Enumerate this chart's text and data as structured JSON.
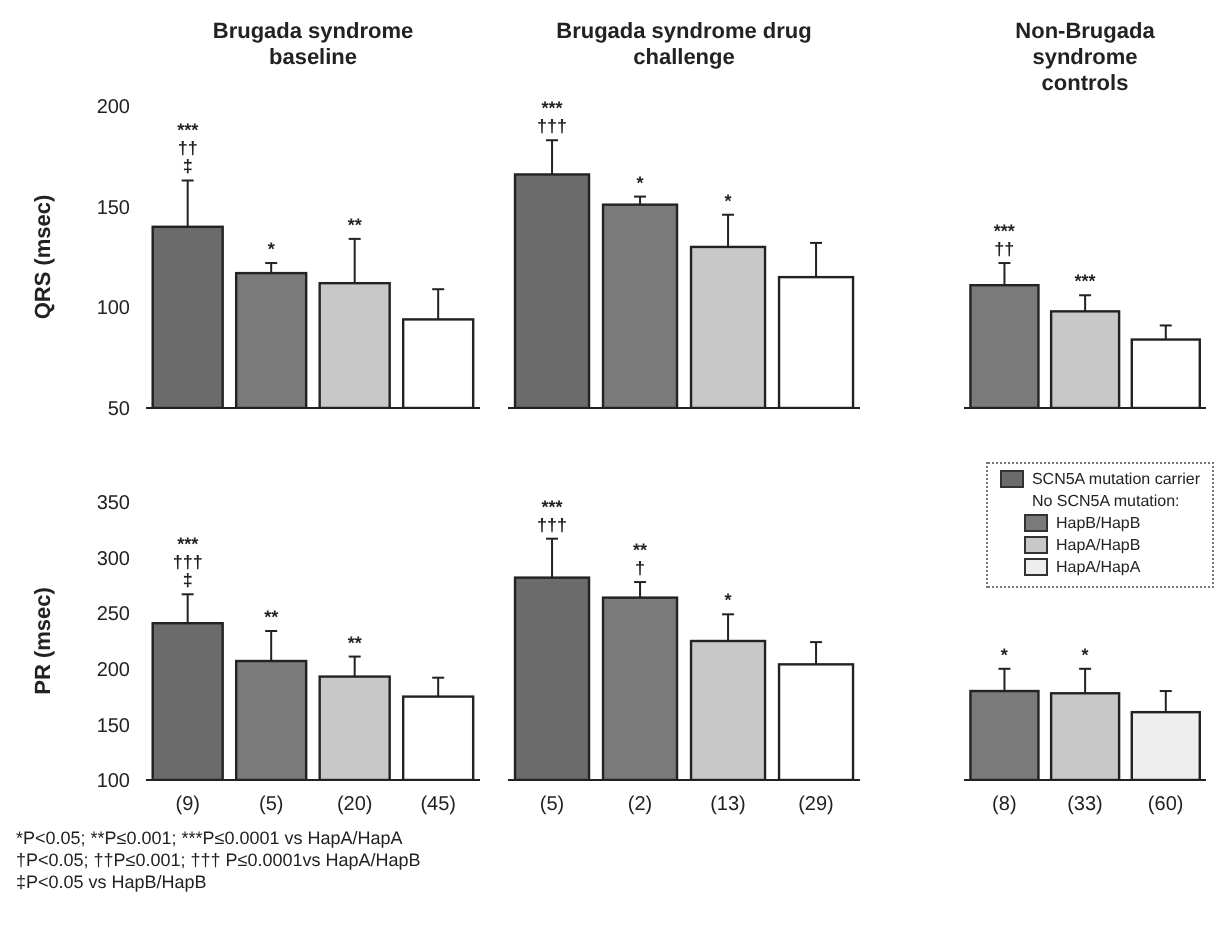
{
  "chart_data": [
    {
      "type": "bar",
      "title": "Brugada syndrome baseline",
      "ylabel": "QRS (msec)",
      "categories": [
        "(9)",
        "(5)",
        "(20)",
        "(45)"
      ],
      "stacked": true,
      "ylim": [
        50,
        200
      ],
      "yticks": [
        50,
        100,
        150,
        200
      ],
      "tick_labels": "y",
      "series": [
        {
          "color": "#6b6b6b",
          "values": [
            140,
            null,
            null,
            null
          ],
          "errors": [
            23,
            null,
            null,
            null
          ]
        },
        {
          "color": "#7a7a7a",
          "values": [
            null,
            117,
            null,
            null
          ],
          "errors": [
            null,
            5,
            null,
            null
          ]
        },
        {
          "color": "#c8c8c8",
          "values": [
            null,
            null,
            112,
            null
          ],
          "errors": [
            null,
            null,
            22,
            null
          ]
        },
        {
          "color": "#ffffff",
          "values": [
            null,
            null,
            null,
            94
          ],
          "errors": [
            null,
            null,
            null,
            15
          ]
        }
      ],
      "annotations": [
        {
          "text": "***",
          "x": "(9)",
          "y": 163
        },
        {
          "text": "††",
          "x": "(9)",
          "y": 163
        },
        {
          "text": "‡",
          "x": "(9)",
          "y": 163
        },
        {
          "text": "*",
          "x": "(5)",
          "y": 122
        },
        {
          "text": "**",
          "x": "(20)",
          "y": 134
        }
      ]
    },
    {
      "type": "bar",
      "title": "Brugada syndrome drug challenge",
      "categories": [
        "(5)",
        "(2)",
        "(13)",
        "(29)"
      ],
      "stacked": true,
      "ylim": [
        50,
        200
      ],
      "yticks": [
        50,
        100,
        150,
        200
      ],
      "tick_labels": false,
      "series": [
        {
          "color": "#6b6b6b",
          "values": [
            166,
            null,
            null,
            null
          ],
          "errors": [
            17,
            null,
            null,
            null
          ]
        },
        {
          "color": "#7a7a7a",
          "values": [
            null,
            151,
            null,
            null
          ],
          "errors": [
            null,
            4,
            null,
            null
          ]
        },
        {
          "color": "#c8c8c8",
          "values": [
            null,
            null,
            130,
            null
          ],
          "errors": [
            null,
            null,
            16,
            null
          ]
        },
        {
          "color": "#ffffff",
          "values": [
            null,
            null,
            null,
            115
          ],
          "errors": [
            null,
            null,
            null,
            17
          ]
        }
      ],
      "annotations": [
        {
          "text": "***",
          "x": "(5)",
          "y": 183
        },
        {
          "text": "†††",
          "x": "(5)",
          "y": 183
        },
        {
          "text": "*",
          "x": "(2)",
          "y": 155
        },
        {
          "text": "*",
          "x": "(13)",
          "y": 146
        }
      ]
    },
    {
      "type": "bar",
      "title": "Non-Brugada syndrome controls",
      "categories": [
        "(8)",
        "(33)",
        "(60)"
      ],
      "stacked": true,
      "ylim": [
        50,
        200
      ],
      "yticks": [
        50,
        100,
        150,
        200
      ],
      "tick_labels": false,
      "series": [
        {
          "color": "#6b6b6b",
          "values": [
            null,
            null,
            null
          ],
          "errors": [
            null,
            null,
            null
          ]
        },
        {
          "color": "#7a7a7a",
          "values": [
            111,
            null,
            null
          ],
          "errors": [
            11,
            null,
            null
          ]
        },
        {
          "color": "#c8c8c8",
          "values": [
            null,
            98,
            null
          ],
          "errors": [
            null,
            8,
            null
          ]
        },
        {
          "color": "#ffffff",
          "values": [
            null,
            null,
            84
          ],
          "errors": [
            null,
            null,
            7
          ]
        }
      ],
      "annotations": [
        {
          "text": "***",
          "x": "(8)",
          "y": 122
        },
        {
          "text": "††",
          "x": "(8)",
          "y": 122
        },
        {
          "text": "***",
          "x": "(33)",
          "y": 106
        }
      ]
    },
    {
      "type": "bar",
      "ylabel": "PR (msec)",
      "categories": [
        "(9)",
        "(5)",
        "(20)",
        "(45)"
      ],
      "stacked": true,
      "ylim": [
        100,
        350
      ],
      "yticks": [
        100,
        150,
        200,
        250,
        300,
        350
      ],
      "series": [
        {
          "color": "#6b6b6b",
          "values": [
            241,
            null,
            null,
            null
          ],
          "errors": [
            26,
            null,
            null,
            null
          ]
        },
        {
          "color": "#7a7a7a",
          "values": [
            null,
            207,
            null,
            null
          ],
          "errors": [
            null,
            27,
            null,
            null
          ]
        },
        {
          "color": "#c8c8c8",
          "values": [
            null,
            null,
            193,
            null
          ],
          "errors": [
            null,
            null,
            18,
            null
          ]
        },
        {
          "color": "#ffffff",
          "values": [
            null,
            null,
            null,
            175
          ],
          "errors": [
            null,
            null,
            null,
            17
          ]
        }
      ],
      "annotations": [
        {
          "text": "***",
          "x": "(9)",
          "y": 267
        },
        {
          "text": "†††",
          "x": "(9)",
          "y": 267
        },
        {
          "text": "‡",
          "x": "(9)",
          "y": 267
        },
        {
          "text": "**",
          "x": "(5)",
          "y": 234
        },
        {
          "text": "**",
          "x": "(20)",
          "y": 211
        },
        "*P<0.05; **P≤0.001; ***P≤0.0001 vs HapA/HapA",
        "†P<0.05; ††P≤0.001; ††† P≤0.0001vs HapA/HapB",
        "‡P<0.05 vs HapB/HapB"
      ]
    },
    {
      "type": "bar",
      "categories": [
        "(5)",
        "(2)",
        "(13)",
        "(29)"
      ],
      "stacked": true,
      "ylim": [
        100,
        350
      ],
      "yticks": [
        100,
        150,
        200,
        250,
        300,
        350
      ],
      "tick_labels": "x",
      "series": [
        {
          "color": "#6b6b6b",
          "values": [
            282,
            null,
            null,
            null
          ],
          "errors": [
            35,
            null,
            null,
            null
          ]
        },
        {
          "color": "#7a7a7a",
          "values": [
            null,
            264,
            null,
            null
          ],
          "errors": [
            null,
            14,
            null,
            null
          ]
        },
        {
          "color": "#c8c8c8",
          "values": [
            null,
            null,
            225,
            null
          ],
          "errors": [
            null,
            null,
            24,
            null
          ]
        },
        {
          "color": "#ffffff",
          "values": [
            null,
            null,
            null,
            204
          ],
          "errors": [
            null,
            null,
            null,
            20
          ]
        }
      ],
      "annotations": [
        {
          "text": "***",
          "x": "(5)",
          "y": 317
        },
        {
          "text": "†††",
          "x": "(5)",
          "y": 317
        },
        {
          "text": "**",
          "x": "(2)",
          "y": 278
        },
        {
          "text": "†",
          "x": "(2)",
          "y": 278
        },
        {
          "text": "*",
          "x": "(13)",
          "y": 249
        }
      ]
    },
    {
      "type": "bar",
      "categories": [
        "(8)",
        "(33)",
        "(60)"
      ],
      "stacked": true,
      "ylim": [
        100,
        350
      ],
      "yticks": [
        100,
        150,
        200,
        250,
        300,
        350
      ],
      "tick_labels": "x",
      "legend": "top right",
      "legend_title": "No SCN5A mutation:",
      "series": [
        {
          "name": "SCN5A mutation carrier",
          "color": "#6b6b6b",
          "values": [
            null,
            null,
            null
          ],
          "errors": [
            null,
            null,
            null
          ]
        },
        {
          "name": "HapB/HapB",
          "color": "#7a7a7a",
          "values": [
            180,
            null,
            null
          ],
          "errors": [
            20,
            null,
            null
          ]
        },
        {
          "name": "HapA/HapB",
          "color": "#c8c8c8",
          "values": [
            null,
            178,
            null
          ],
          "errors": [
            null,
            22,
            null
          ]
        },
        {
          "name": "HapA/HapA",
          "color": "#eeeeee",
          "values": [
            null,
            null,
            161
          ],
          "errors": [
            null,
            null,
            19
          ]
        }
      ],
      "annotations": [
        {
          "text": "*",
          "x": "(8)",
          "y": 200
        },
        {
          "text": "*",
          "x": "(33)",
          "y": 200
        }
      ]
    }
  ]
}
